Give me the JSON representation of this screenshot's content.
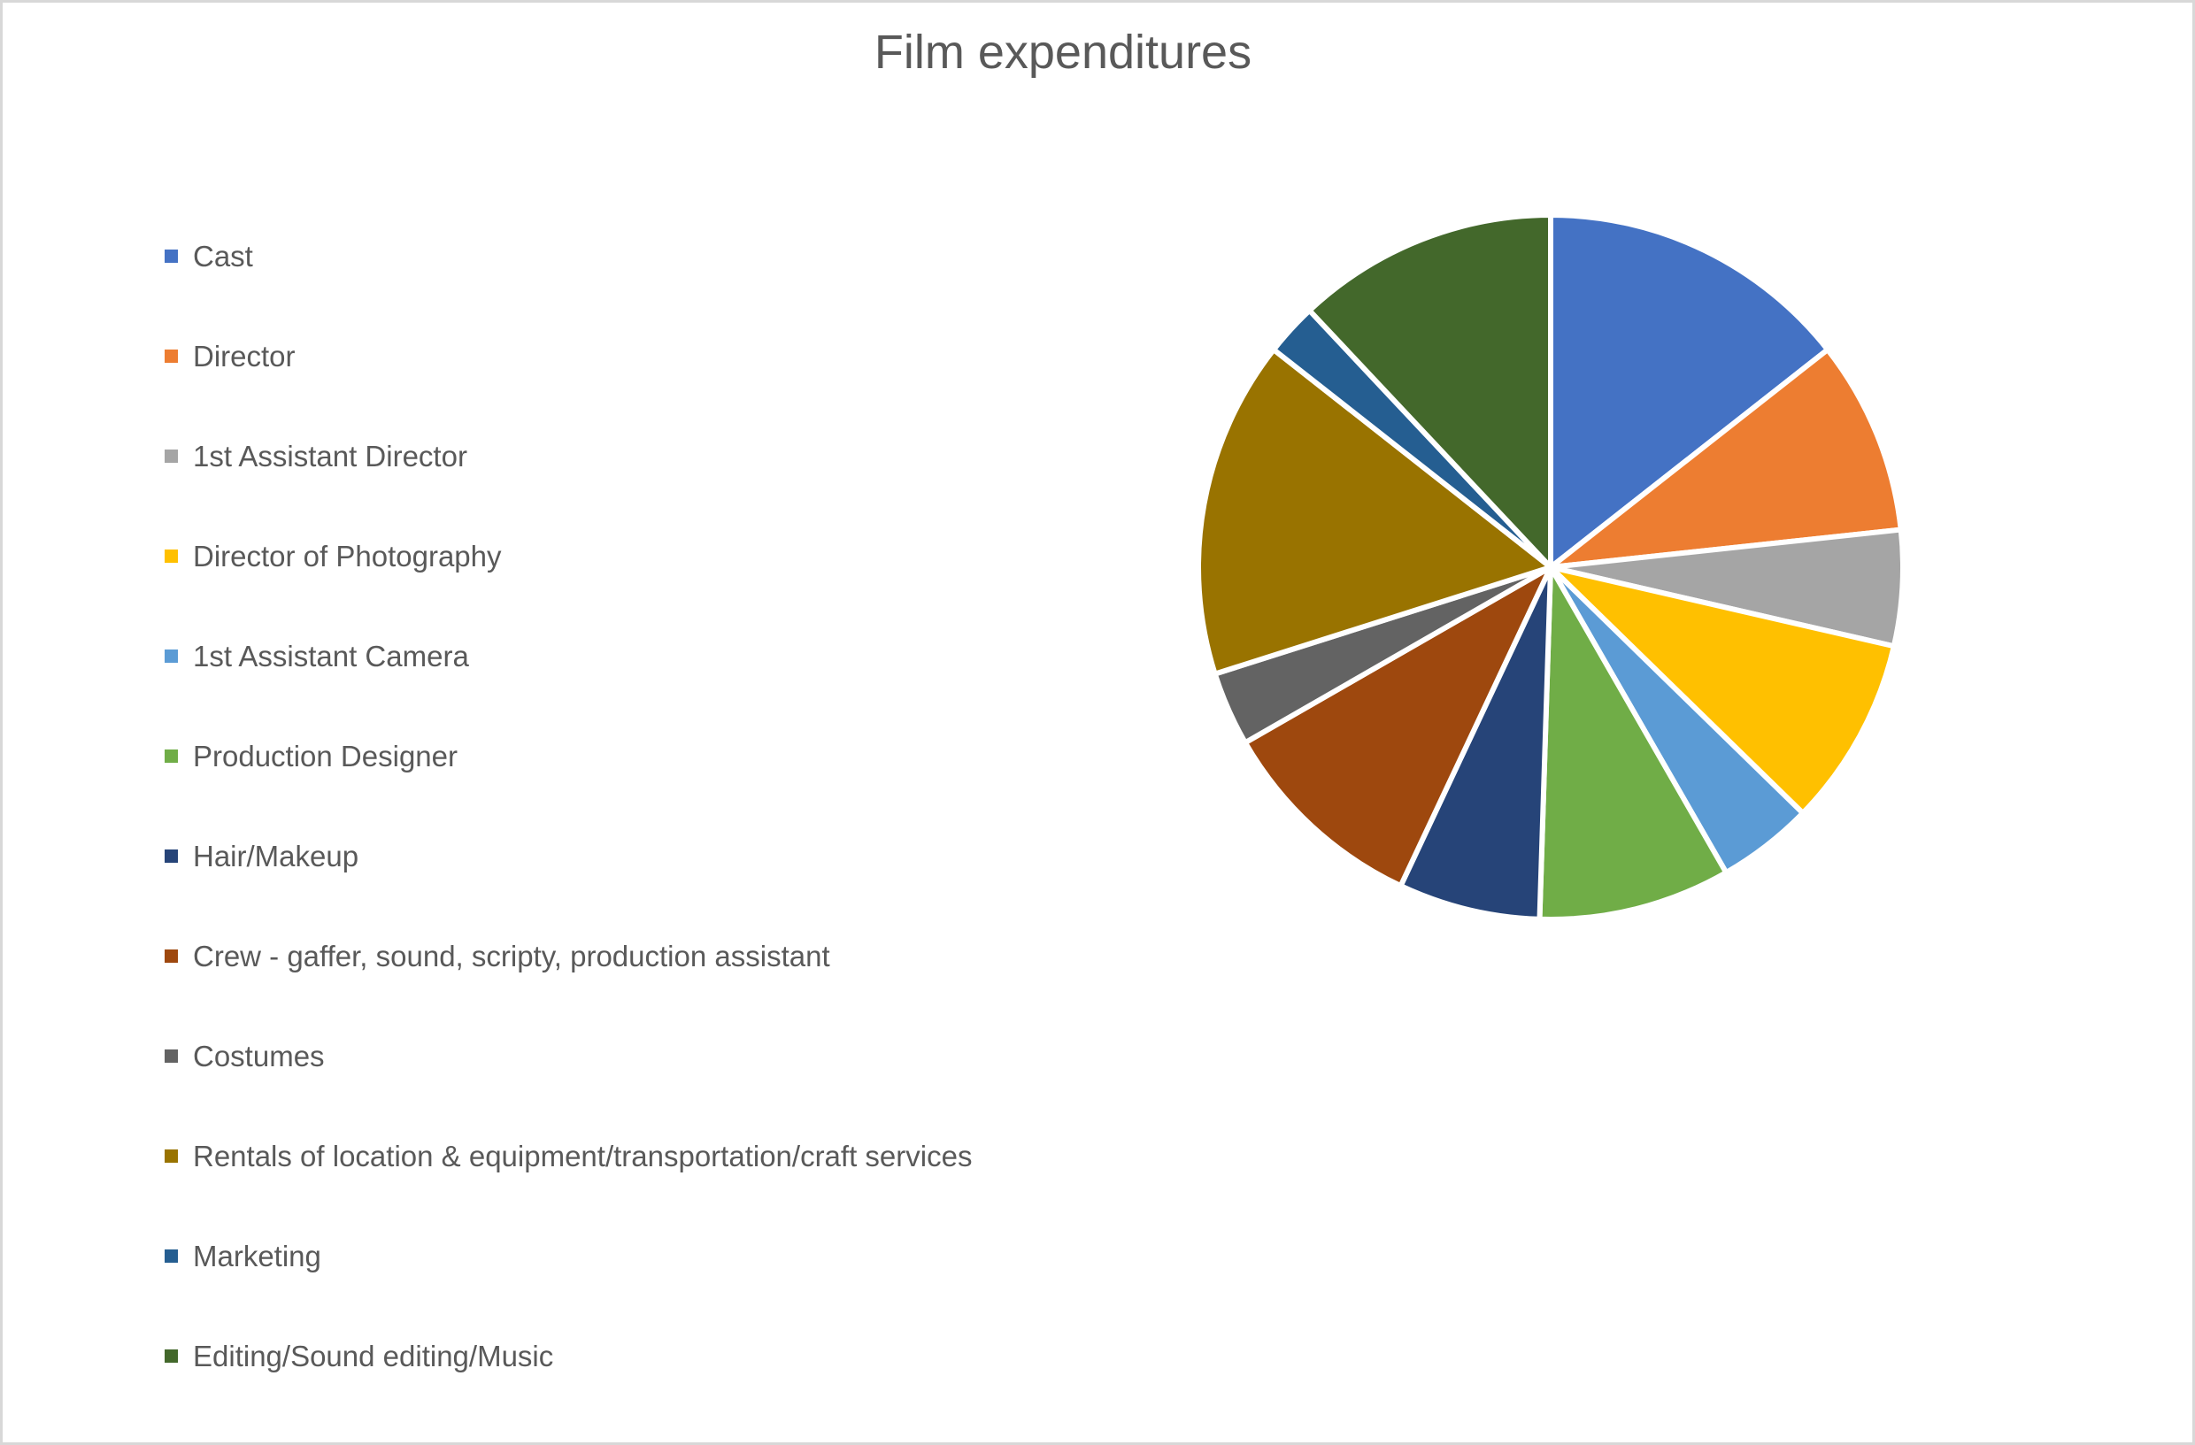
{
  "chart": {
    "title": "Film expenditures",
    "title_color": "#595959",
    "legend_text_color": "#595959",
    "background": "#FFFFFF",
    "canvas_border_color": "#D8D8D8"
  },
  "chart_data": {
    "type": "pie",
    "title": "Film expenditures",
    "legend_position": "left",
    "start_angle_deg": 0,
    "direction": "clockwise",
    "slice_border_color": "#FFFFFF",
    "values_unit": "percent_of_total_estimated_from_slice_angles",
    "categories": [
      "Cast",
      "Director",
      "1st Assistant Director",
      "Director of Photography",
      "1st Assistant Camera",
      "Production Designer",
      "Hair/Makeup",
      "Crew - gaffer, sound, scripty, production assistant",
      "Costumes",
      "Rentals of location & equipment/transportation/craft services",
      "Marketing",
      "Editing/Sound editing/Music"
    ],
    "values": [
      14.4,
      8.9,
      5.3,
      8.7,
      4.4,
      8.8,
      6.5,
      9.7,
      3.4,
      15.5,
      2.4,
      12.0
    ],
    "colors": [
      "#4472C4",
      "#ED7D31",
      "#A5A5A5",
      "#FFC000",
      "#5B9BD5",
      "#70AD47",
      "#264478",
      "#9E480E",
      "#636363",
      "#997300",
      "#255E91",
      "#43682B"
    ]
  }
}
